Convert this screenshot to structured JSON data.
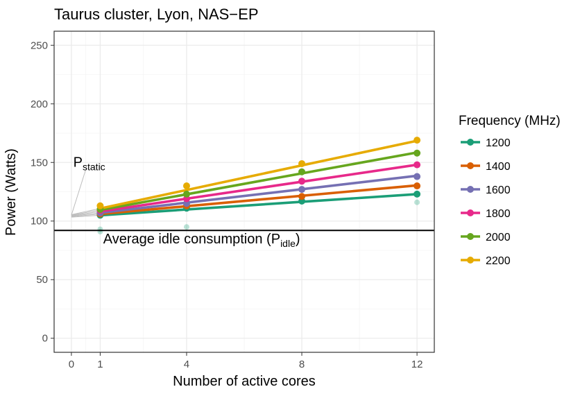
{
  "chart_data": {
    "type": "line",
    "title": "Taurus cluster, Lyon, NAS−EP",
    "xlabel": "Number of active cores",
    "ylabel": "Power (Watts)",
    "xlim": [
      -0.6,
      12.6
    ],
    "ylim": [
      -12,
      262
    ],
    "x_ticks": [
      0,
      1,
      4,
      8,
      12
    ],
    "y_ticks": [
      0,
      50,
      100,
      150,
      200,
      250
    ],
    "grid": true,
    "legend_position": "right",
    "legend": {
      "title": "Frequency (MHz)",
      "entries": [
        "1200",
        "1400",
        "1600",
        "1800",
        "2000",
        "2200"
      ]
    },
    "colors": {
      "1200": "#1b9e77",
      "1400": "#d95f02",
      "1600": "#7570b3",
      "1800": "#e7298a",
      "2000": "#66a61e",
      "2200": "#e6ab02",
      "idle_line": "#000000",
      "static_lines": "#bdbdbd",
      "outliers": "#1b9e77"
    },
    "series": [
      {
        "name": "1200",
        "x": [
          1,
          4,
          8,
          12
        ],
        "values": [
          105,
          111,
          117,
          123
        ],
        "fit_intercept": 103.3,
        "fit_slope": 1.64
      },
      {
        "name": "1400",
        "x": [
          1,
          4,
          8,
          12
        ],
        "values": [
          106,
          113,
          121,
          130
        ],
        "fit_intercept": 103.8,
        "fit_slope": 2.22
      },
      {
        "name": "1600",
        "x": [
          1,
          4,
          8,
          12
        ],
        "values": [
          107,
          115,
          127,
          138
        ],
        "fit_intercept": 104.2,
        "fit_slope": 2.87
      },
      {
        "name": "1800",
        "x": [
          1,
          4,
          8,
          12
        ],
        "values": [
          109,
          119,
          134,
          148
        ],
        "fit_intercept": 104.6,
        "fit_slope": 3.62
      },
      {
        "name": "2000",
        "x": [
          1,
          4,
          8,
          12
        ],
        "values": [
          110,
          123,
          142,
          158
        ],
        "fit_intercept": 105.0,
        "fit_slope": 4.46
      },
      {
        "name": "2200",
        "x": [
          1,
          4,
          8,
          12
        ],
        "values": [
          113,
          130,
          149,
          169
        ],
        "fit_intercept": 105.5,
        "fit_slope": 5.25
      }
    ],
    "outlier_points": [
      {
        "x": 1,
        "y": 91
      },
      {
        "x": 1,
        "y": 93
      },
      {
        "x": 4,
        "y": 95
      },
      {
        "x": 12,
        "y": 116
      }
    ],
    "idle_level": 92,
    "annotations": {
      "p_static": {
        "main": "P",
        "sub": "static",
        "x": 0,
        "y": 105,
        "label_x": 0.5,
        "label_y": 150
      },
      "idle": {
        "prefix": "Average idle consumption (",
        "main": "P",
        "sub": "idle",
        "suffix": ")",
        "x": 1.2,
        "y": 82
      }
    }
  }
}
